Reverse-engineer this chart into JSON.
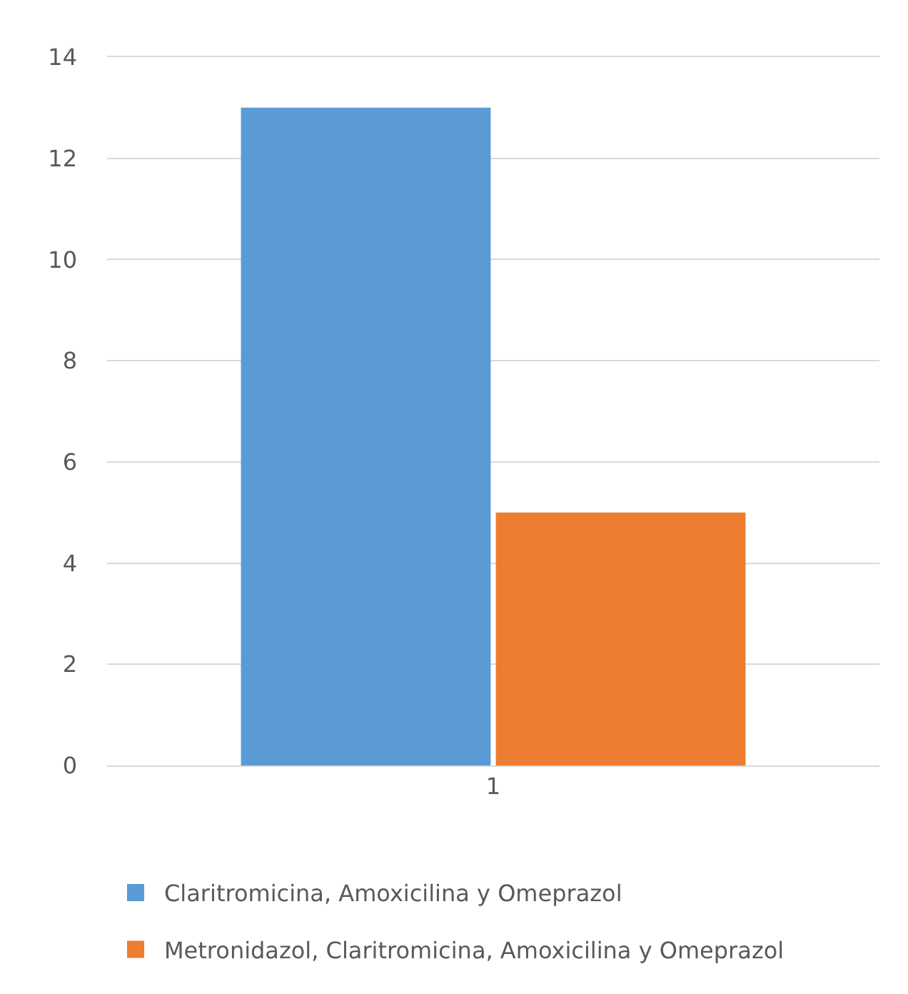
{
  "chart_data": {
    "type": "bar",
    "categories": [
      "1"
    ],
    "series": [
      {
        "name": "Claritromicina, Amoxicilina y Omeprazol",
        "color": "#5b9bd5",
        "values": [
          13
        ]
      },
      {
        "name": "Metronidazol, Claritromicina, Amoxicilina y Omeprazol",
        "color": "#ed7d31",
        "values": [
          5
        ]
      }
    ],
    "ylim": [
      0,
      14
    ],
    "yticks": [
      0,
      2,
      4,
      6,
      8,
      10,
      12,
      14
    ],
    "grid": "y",
    "legend": "bottom"
  }
}
